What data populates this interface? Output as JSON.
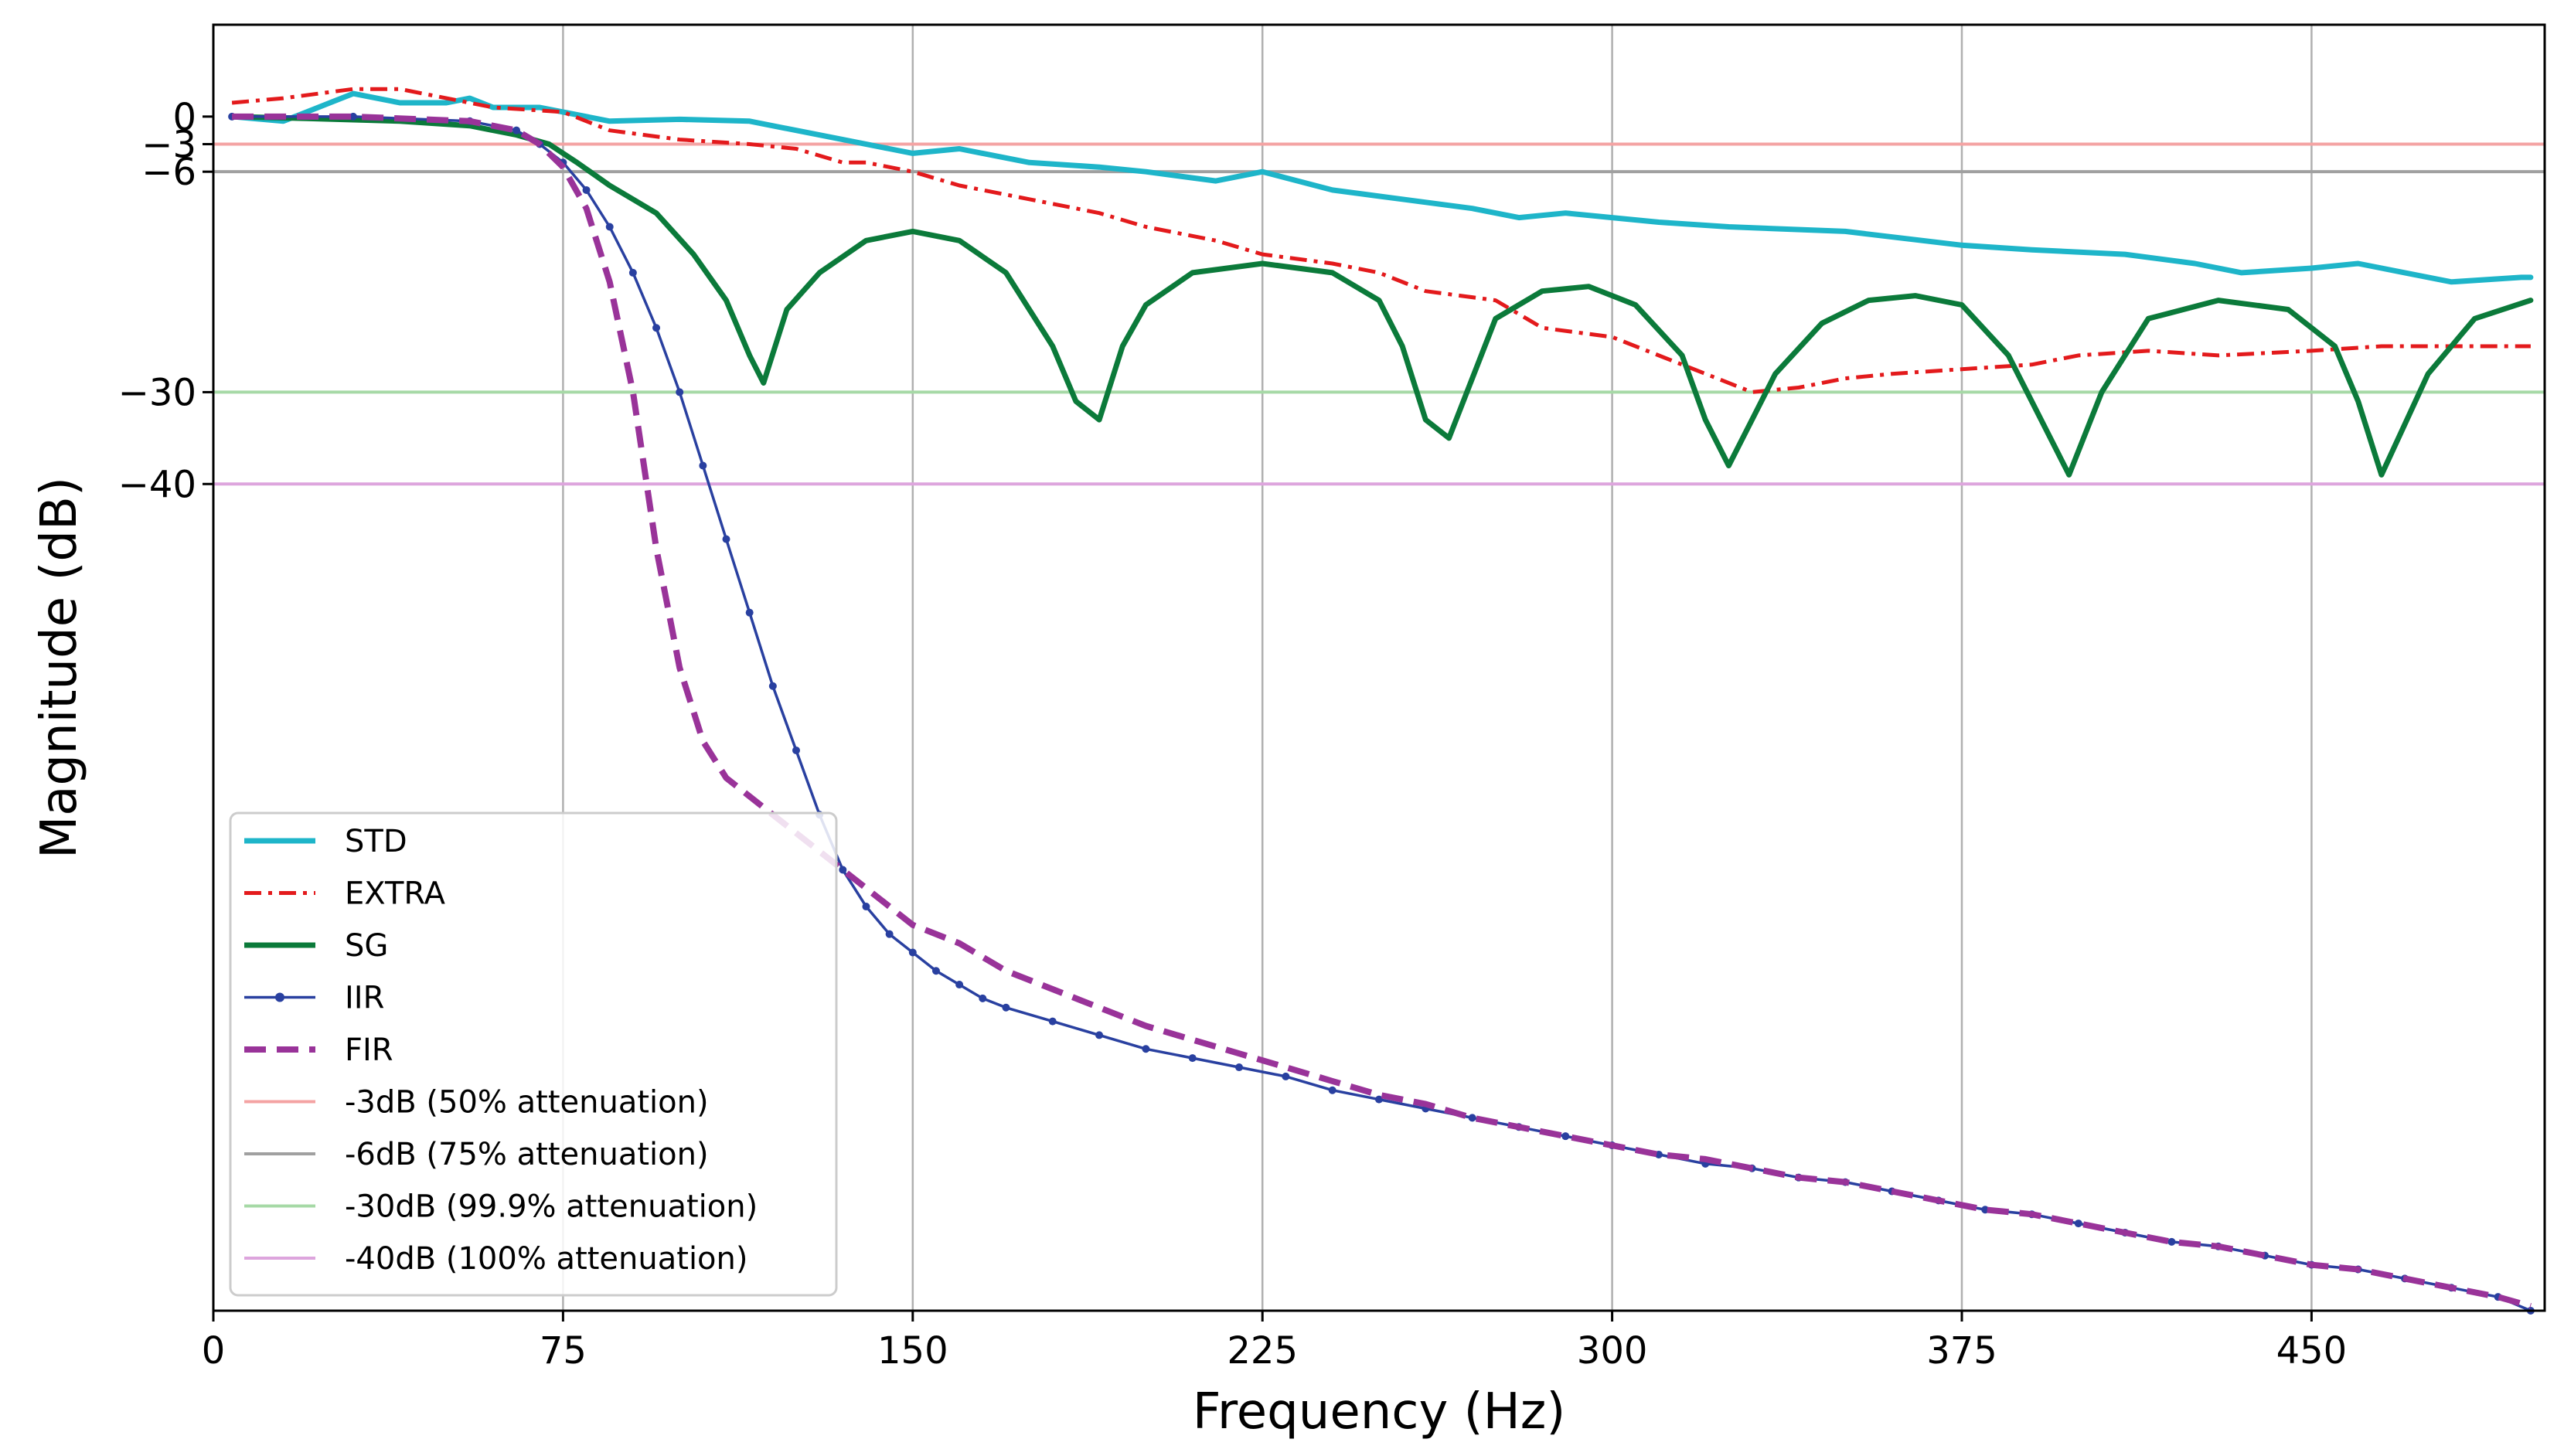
{
  "chart_data": {
    "type": "line",
    "xlabel": "Frequency (Hz)",
    "ylabel": "Magnitude (dB)",
    "xlim": [
      0,
      500
    ],
    "ylim": [
      -130,
      10
    ],
    "grid": "vertical",
    "legend_position": "lower-left",
    "x_ticks": [
      0,
      75,
      150,
      225,
      300,
      375,
      450
    ],
    "y_ticks": [
      0,
      -3,
      -6,
      -30,
      -40
    ],
    "y_tick_labels": [
      "0",
      "−3",
      "−6",
      "−30",
      "−40"
    ],
    "colors": {
      "STD": "#1eb5c9",
      "EXTRA": "#e31a1c",
      "SG": "#0b7a3a",
      "IIR": "#2940a0",
      "FIR": "#993399",
      "ref_3": "#f4a3a3",
      "ref_6": "#a0a0a0",
      "ref_30": "#a6d9a6",
      "ref_40": "#dda5dd"
    },
    "series": [
      {
        "name": "STD",
        "key": "STD",
        "style": "solid-thick",
        "x": [
          4,
          15,
          25,
          30,
          40,
          50,
          55,
          60,
          70,
          75,
          85,
          100,
          115,
          125,
          135,
          145,
          150,
          160,
          175,
          190,
          200,
          215,
          225,
          240,
          255,
          270,
          280,
          290,
          300,
          310,
          325,
          350,
          375,
          390,
          410,
          425,
          435,
          450,
          460,
          470,
          480,
          495,
          497
        ],
        "y": [
          0,
          -0.5,
          1.5,
          2.5,
          1.5,
          1.5,
          2.0,
          1.0,
          1.0,
          0.5,
          -0.5,
          -0.3,
          -0.5,
          -1.5,
          -2.5,
          -3.5,
          -4.0,
          -3.5,
          -5.0,
          -5.5,
          -6.0,
          -7.0,
          -6.0,
          -8.0,
          -9.0,
          -10.0,
          -11.0,
          -10.5,
          -11.0,
          -11.5,
          -12.0,
          -12.5,
          -14.0,
          -14.5,
          -15.0,
          -16.0,
          -17.0,
          -16.5,
          -16.0,
          -17.0,
          -18.0,
          -17.5,
          -17.5
        ]
      },
      {
        "name": "EXTRA",
        "key": "EXTRA",
        "style": "dashdot",
        "x": [
          4,
          15,
          30,
          40,
          50,
          60,
          75,
          85,
          100,
          115,
          125,
          135,
          140,
          150,
          160,
          175,
          190,
          200,
          215,
          225,
          240,
          250,
          260,
          275,
          285,
          300,
          315,
          330,
          340,
          350,
          360,
          375,
          390,
          400,
          415,
          430,
          450,
          465,
          480,
          497
        ],
        "y": [
          1.5,
          2.0,
          3.0,
          3.0,
          2.0,
          1.0,
          0.5,
          -1.5,
          -2.5,
          -3.0,
          -3.5,
          -5.0,
          -5.0,
          -6.0,
          -7.5,
          -9.0,
          -10.5,
          -12.0,
          -13.5,
          -15.0,
          -16.0,
          -17.0,
          -19.0,
          -20.0,
          -23.0,
          -24.0,
          -27.0,
          -30.0,
          -29.5,
          -28.5,
          -28.0,
          -27.5,
          -27.0,
          -26.0,
          -25.5,
          -26.0,
          -25.5,
          -25.0,
          -25.0,
          -25.0
        ]
      },
      {
        "name": "SG",
        "key": "SG",
        "style": "solid-thick",
        "x": [
          4,
          20,
          40,
          55,
          65,
          72,
          78,
          85,
          95,
          103,
          110,
          115,
          118,
          123,
          130,
          140,
          150,
          160,
          170,
          180,
          185,
          190,
          195,
          200,
          210,
          225,
          240,
          250,
          255,
          260,
          265,
          275,
          285,
          295,
          305,
          315,
          320,
          325,
          330,
          335,
          345,
          355,
          365,
          375,
          385,
          392,
          398,
          405,
          415,
          430,
          445,
          455,
          460,
          465,
          475,
          485,
          497
        ],
        "y": [
          0,
          -0.2,
          -0.5,
          -1.0,
          -2.0,
          -3.0,
          -5.0,
          -7.5,
          -10.5,
          -15.0,
          -20.0,
          -26.0,
          -29.0,
          -21.0,
          -17.0,
          -13.5,
          -12.5,
          -13.5,
          -17.0,
          -25.0,
          -31.0,
          -33.0,
          -25.0,
          -20.5,
          -17.0,
          -16.0,
          -17.0,
          -20.0,
          -25.0,
          -33.0,
          -35.0,
          -22.0,
          -19.0,
          -18.5,
          -20.5,
          -26.0,
          -33.0,
          -38.0,
          -33.0,
          -28.0,
          -22.5,
          -20.0,
          -19.5,
          -20.5,
          -26.0,
          -33.0,
          -39.0,
          -30.0,
          -22.0,
          -20.0,
          -21.0,
          -25.0,
          -31.0,
          -39.0,
          -28.0,
          -22.0,
          -20.0
        ]
      },
      {
        "name": "IIR",
        "key": "IIR",
        "style": "solid-markers",
        "x": [
          4,
          30,
          55,
          65,
          70,
          75,
          80,
          85,
          90,
          95,
          100,
          105,
          110,
          115,
          120,
          125,
          130,
          135,
          140,
          145,
          150,
          155,
          160,
          165,
          170,
          180,
          190,
          200,
          210,
          220,
          230,
          240,
          250,
          260,
          270,
          280,
          290,
          300,
          310,
          320,
          330,
          340,
          350,
          360,
          370,
          380,
          390,
          400,
          410,
          420,
          430,
          440,
          450,
          460,
          470,
          480,
          490,
          497
        ],
        "y": [
          0,
          0,
          -0.5,
          -1.5,
          -3.0,
          -5.0,
          -8.0,
          -12.0,
          -17.0,
          -23.0,
          -30.0,
          -38.0,
          -46.0,
          -54.0,
          -62.0,
          -69.0,
          -76.0,
          -82.0,
          -86.0,
          -89.0,
          -91.0,
          -93.0,
          -94.5,
          -96.0,
          -97.0,
          -98.5,
          -100.0,
          -101.5,
          -102.5,
          -103.5,
          -104.5,
          -106.0,
          -107.0,
          -108.0,
          -109.0,
          -110.0,
          -111.0,
          -112.0,
          -113.0,
          -114.0,
          -114.5,
          -115.5,
          -116.0,
          -117.0,
          -118.0,
          -119.0,
          -119.5,
          -120.5,
          -121.5,
          -122.5,
          -123.0,
          -124.0,
          -125.0,
          -125.5,
          -126.5,
          -127.5,
          -128.5,
          -130.0
        ]
      },
      {
        "name": "FIR",
        "key": "FIR",
        "style": "dashed-thick",
        "x": [
          4,
          30,
          55,
          65,
          70,
          75,
          80,
          85,
          90,
          95,
          100,
          105,
          110,
          120,
          130,
          140,
          150,
          160,
          170,
          180,
          190,
          200,
          210,
          220,
          230,
          240,
          250,
          260,
          270,
          280,
          290,
          300,
          310,
          320,
          330,
          340,
          350,
          360,
          370,
          380,
          390,
          400,
          410,
          420,
          430,
          440,
          450,
          460,
          470,
          480,
          490,
          497
        ],
        "y": [
          0,
          0,
          -0.5,
          -1.5,
          -3.0,
          -5.5,
          -10.0,
          -18.0,
          -30.0,
          -47.0,
          -60.0,
          -68.0,
          -72.0,
          -76.0,
          -80.0,
          -84.0,
          -88.0,
          -90.0,
          -93.0,
          -95.0,
          -97.0,
          -99.0,
          -100.5,
          -102.0,
          -103.5,
          -105.0,
          -106.5,
          -107.5,
          -109.0,
          -110.0,
          -111.0,
          -112.0,
          -113.0,
          -113.5,
          -114.5,
          -115.5,
          -116.0,
          -117.0,
          -118.0,
          -119.0,
          -119.5,
          -120.5,
          -121.5,
          -122.5,
          -123.0,
          -124.0,
          -125.0,
          -125.5,
          -126.5,
          -127.5,
          -128.5,
          -129.5
        ]
      }
    ],
    "reference_lines": [
      {
        "y": -3,
        "key": "ref_3",
        "label": "-3dB (50% attenuation)"
      },
      {
        "y": -6,
        "key": "ref_6",
        "label": "-6dB (75% attenuation)"
      },
      {
        "y": -30,
        "key": "ref_30",
        "label": "-30dB (99.9% attenuation)"
      },
      {
        "y": -40,
        "key": "ref_40",
        "label": "-40dB (100% attenuation)"
      }
    ],
    "legend_entries": [
      "STD",
      "EXTRA",
      "SG",
      "IIR",
      "FIR",
      "-3dB (50% attenuation)",
      "-6dB (75% attenuation)",
      "-30dB (99.9% attenuation)",
      "-40dB (100% attenuation)"
    ]
  }
}
